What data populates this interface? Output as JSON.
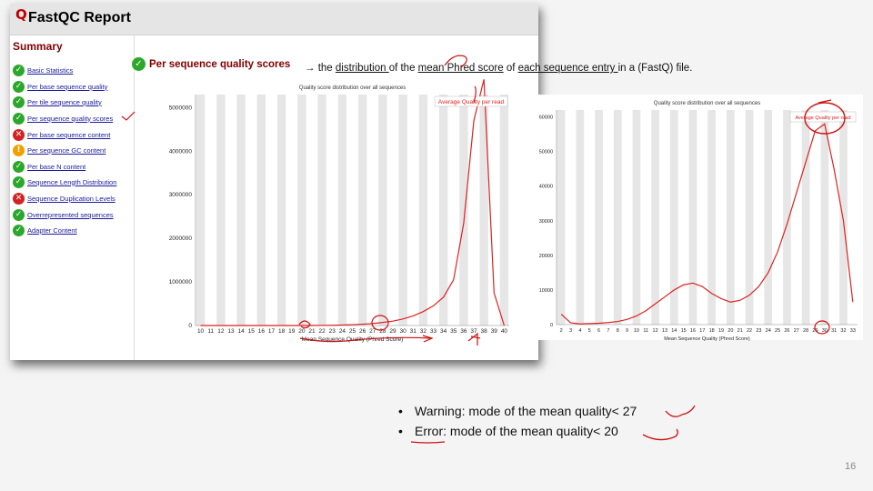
{
  "report": {
    "logo": "Q",
    "title": "FastQC Report",
    "summary_title": "Summary",
    "modules": [
      {
        "label": "Basic Statistics",
        "status": "pass",
        "icon": "check-icon"
      },
      {
        "label": "Per base sequence quality",
        "status": "pass",
        "icon": "check-icon"
      },
      {
        "label": "Per tile sequence quality",
        "status": "pass",
        "icon": "check-icon"
      },
      {
        "label": "Per sequence quality scores",
        "status": "pass",
        "icon": "check-icon"
      },
      {
        "label": "Per base sequence content",
        "status": "fail",
        "icon": "cross-icon"
      },
      {
        "label": "Per sequence GC content",
        "status": "warn",
        "icon": "exclamation-icon"
      },
      {
        "label": "Per base N content",
        "status": "pass",
        "icon": "check-icon"
      },
      {
        "label": "Sequence Length Distribution",
        "status": "pass",
        "icon": "check-icon"
      },
      {
        "label": "Sequence Duplication Levels",
        "status": "fail",
        "icon": "cross-icon"
      },
      {
        "label": "Overrepresented sequences",
        "status": "pass",
        "icon": "check-icon"
      },
      {
        "label": "Adapter Content",
        "status": "pass",
        "icon": "check-icon"
      }
    ],
    "module_heading": "Per sequence quality scores"
  },
  "description": {
    "arrow": "→",
    "text_1": " the ",
    "u_1": "distribution ",
    "text_2": "of the ",
    "u_2": "mean Phred score",
    "text_3": " of ",
    "u_3": "each sequence entry ",
    "text_4": "in a (FastQ) file."
  },
  "chart_data": [
    {
      "type": "line",
      "title": "Quality score distribution over all sequences",
      "xlabel": "Mean Sequence Quality (Phred Score)",
      "ylabel": "",
      "legend": "Average Quality per read",
      "legend_position": "top-right",
      "x": [
        10,
        11,
        12,
        13,
        14,
        15,
        16,
        17,
        18,
        19,
        20,
        21,
        22,
        23,
        24,
        25,
        26,
        27,
        28,
        29,
        30,
        31,
        32,
        33,
        34,
        35,
        36,
        37,
        38,
        39,
        40
      ],
      "ytick_labels": [
        "0",
        "1000000",
        "2000000",
        "3000000",
        "4000000",
        "5000000"
      ],
      "ylim": [
        0,
        5300000
      ],
      "series": [
        {
          "values": [
            0,
            0,
            0,
            0,
            0,
            0,
            0,
            0,
            0,
            0,
            0,
            2000,
            4000,
            7000,
            12000,
            20000,
            30000,
            45000,
            70000,
            100000,
            150000,
            220000,
            320000,
            450000,
            650000,
            1050000,
            2350000,
            4700000,
            5650000,
            750000,
            0
          ]
        }
      ],
      "grid": "alternating vertical bands"
    },
    {
      "type": "line",
      "title": "Quality score distribution over all sequences",
      "xlabel": "Mean Sequence Quality (Phred Score)",
      "ylabel": "",
      "legend": "Average Quality per read",
      "legend_position": "top-right",
      "x": [
        2,
        3,
        4,
        5,
        6,
        7,
        8,
        9,
        10,
        11,
        12,
        13,
        14,
        15,
        16,
        17,
        18,
        19,
        20,
        21,
        22,
        23,
        24,
        25,
        26,
        27,
        28,
        29,
        30,
        31,
        32,
        33
      ],
      "ytick_labels": [
        "0",
        "10000",
        "20000",
        "30000",
        "40000",
        "50000",
        "60000"
      ],
      "ylim": [
        0,
        62000
      ],
      "series": [
        {
          "values": [
            3000,
            500,
            200,
            300,
            400,
            600,
            900,
            1500,
            2500,
            4000,
            6000,
            8000,
            10000,
            11500,
            12000,
            11000,
            9000,
            7500,
            6500,
            7000,
            8500,
            11000,
            15000,
            21000,
            29000,
            38000,
            47000,
            56000,
            58000,
            45000,
            30000,
            6500
          ]
        }
      ],
      "grid": "alternating vertical bands"
    }
  ],
  "bullets": [
    {
      "dot": "•",
      "label": "Warning",
      "text": ": mode  of the mean  quality  ",
      "value": "< 27"
    },
    {
      "dot": "•",
      "label": "Error",
      "text": ": mode  of the mean  quality  ",
      "value": "< 20"
    }
  ],
  "page_number": "16",
  "colors": {
    "line": "#dd2222",
    "ink": "#cc1111",
    "band": "#e6e6e6",
    "pass": "#2ba82b",
    "warn": "#f0a000",
    "fail": "#d22222",
    "heading": "#800000"
  }
}
